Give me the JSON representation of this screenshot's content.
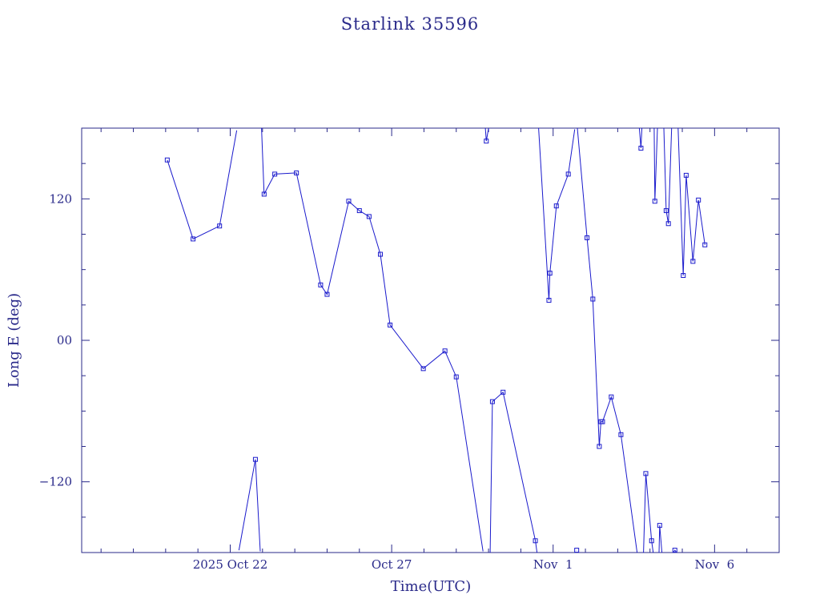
{
  "chart_data": {
    "type": "line",
    "title": "Starlink 35596",
    "xlabel": "Time(UTC)",
    "ylabel": "Long E (deg)",
    "x_unit": "days in Oct-Nov 2025 (day-of-month index, Nov 1 = 32)",
    "xlim": [
      17.4,
      39.0
    ],
    "ylim": [
      -180,
      180
    ],
    "grid": false,
    "colors": {
      "axes": "#2a2a8a",
      "series": "#1a1acc",
      "text": "#2a2a8a"
    },
    "x_ticks": [
      {
        "value": 22,
        "label": "2025 Oct 22"
      },
      {
        "value": 27,
        "label": "Oct 27"
      },
      {
        "value": 32,
        "label": "Nov  1"
      },
      {
        "value": 37,
        "label": "Nov  6"
      }
    ],
    "y_ticks": [
      {
        "value": 120,
        "label": "120"
      },
      {
        "value": 0,
        "label": "00"
      },
      {
        "value": -120,
        "label": "−120"
      }
    ],
    "series": [
      {
        "points": [
          {
            "x": 20.05,
            "y": 153
          },
          {
            "x": 20.85,
            "y": 86
          },
          {
            "x": 21.67,
            "y": 97
          },
          {
            "x": 22.2,
            "y": 178,
            "wrap": true
          },
          {
            "x": 22.27,
            "y": -178
          },
          {
            "x": 22.78,
            "y": -101
          },
          {
            "x": 22.93,
            "y": -179,
            "wrap": true
          },
          {
            "x": 22.97,
            "y": 180
          },
          {
            "x": 23.05,
            "y": 124
          },
          {
            "x": 23.38,
            "y": 141
          },
          {
            "x": 24.05,
            "y": 142
          },
          {
            "x": 24.8,
            "y": 47
          },
          {
            "x": 25.0,
            "y": 39
          },
          {
            "x": 25.67,
            "y": 118
          },
          {
            "x": 26.0,
            "y": 110
          },
          {
            "x": 26.3,
            "y": 105
          },
          {
            "x": 26.65,
            "y": 73
          },
          {
            "x": 26.95,
            "y": 13
          },
          {
            "x": 27.98,
            "y": -24
          },
          {
            "x": 28.65,
            "y": -9
          },
          {
            "x": 29.0,
            "y": -31
          },
          {
            "x": 29.83,
            "y": -179,
            "wrap": true
          },
          {
            "x": 29.9,
            "y": 180
          },
          {
            "x": 29.93,
            "y": 169
          },
          {
            "x": 30.0,
            "y": 180,
            "wrap": true
          },
          {
            "x": 30.05,
            "y": -180
          },
          {
            "x": 30.12,
            "y": -52
          },
          {
            "x": 30.45,
            "y": -44
          },
          {
            "x": 31.45,
            "y": -170
          },
          {
            "x": 31.5,
            "y": -180,
            "wrap": true
          },
          {
            "x": 31.55,
            "y": 180
          },
          {
            "x": 31.87,
            "y": 34
          },
          {
            "x": 31.9,
            "y": 57
          },
          {
            "x": 32.1,
            "y": 114
          },
          {
            "x": 32.47,
            "y": 141
          },
          {
            "x": 32.67,
            "y": 179,
            "wrap": true
          },
          {
            "x": 32.72,
            "y": -178
          },
          {
            "x": 32.73,
            "y": -178,
            "wrap": true
          },
          {
            "x": 32.75,
            "y": 180
          },
          {
            "x": 33.05,
            "y": 87
          },
          {
            "x": 33.23,
            "y": 35
          },
          {
            "x": 33.43,
            "y": -90
          },
          {
            "x": 33.48,
            "y": -69
          },
          {
            "x": 33.53,
            "y": -69
          },
          {
            "x": 33.8,
            "y": -48
          },
          {
            "x": 34.1,
            "y": -80
          },
          {
            "x": 34.6,
            "y": -180,
            "wrap": true
          },
          {
            "x": 34.67,
            "y": 180
          },
          {
            "x": 34.72,
            "y": 163
          },
          {
            "x": 34.75,
            "y": 180,
            "wrap": true
          },
          {
            "x": 34.8,
            "y": -180
          },
          {
            "x": 34.87,
            "y": -113
          },
          {
            "x": 35.05,
            "y": -170
          },
          {
            "x": 35.1,
            "y": -180,
            "wrap": true
          },
          {
            "x": 35.13,
            "y": 180
          },
          {
            "x": 35.15,
            "y": 118
          },
          {
            "x": 35.23,
            "y": 180,
            "wrap": true
          },
          {
            "x": 35.28,
            "y": -180
          },
          {
            "x": 35.3,
            "y": -157
          },
          {
            "x": 35.37,
            "y": -180,
            "wrap": true
          },
          {
            "x": 35.43,
            "y": 180
          },
          {
            "x": 35.5,
            "y": 110
          },
          {
            "x": 35.57,
            "y": 99
          },
          {
            "x": 35.67,
            "y": 180,
            "wrap": true
          },
          {
            "x": 35.72,
            "y": -180
          },
          {
            "x": 35.77,
            "y": -178
          },
          {
            "x": 35.82,
            "y": -180,
            "wrap": true
          },
          {
            "x": 35.87,
            "y": 180
          },
          {
            "x": 36.03,
            "y": 55
          },
          {
            "x": 36.12,
            "y": 140
          },
          {
            "x": 36.33,
            "y": 67
          },
          {
            "x": 36.5,
            "y": 119
          },
          {
            "x": 36.7,
            "y": 81
          }
        ],
        "markers": [
          [
            20.05,
            153
          ],
          [
            20.85,
            86
          ],
          [
            21.67,
            97
          ],
          [
            22.78,
            -101
          ],
          [
            23.05,
            124
          ],
          [
            23.38,
            141
          ],
          [
            24.05,
            142
          ],
          [
            24.8,
            47
          ],
          [
            25.0,
            39
          ],
          [
            25.67,
            118
          ],
          [
            26.0,
            110
          ],
          [
            26.3,
            105
          ],
          [
            26.65,
            73
          ],
          [
            26.95,
            13
          ],
          [
            27.98,
            -24
          ],
          [
            28.65,
            -9
          ],
          [
            29.0,
            -31
          ],
          [
            29.93,
            169
          ],
          [
            30.12,
            -52
          ],
          [
            30.45,
            -44
          ],
          [
            31.45,
            -170
          ],
          [
            31.87,
            34
          ],
          [
            31.9,
            57
          ],
          [
            32.1,
            114
          ],
          [
            32.47,
            141
          ],
          [
            32.73,
            -178
          ],
          [
            33.05,
            87
          ],
          [
            33.23,
            35
          ],
          [
            33.43,
            -90
          ],
          [
            33.48,
            -69
          ],
          [
            33.53,
            -69
          ],
          [
            33.8,
            -48
          ],
          [
            34.1,
            -80
          ],
          [
            34.72,
            163
          ],
          [
            34.87,
            -113
          ],
          [
            35.05,
            -170
          ],
          [
            35.15,
            118
          ],
          [
            35.3,
            -157
          ],
          [
            35.5,
            110
          ],
          [
            35.57,
            99
          ],
          [
            35.77,
            -178
          ],
          [
            36.03,
            55
          ],
          [
            36.12,
            140
          ],
          [
            36.33,
            67
          ],
          [
            36.5,
            119
          ],
          [
            36.7,
            81
          ]
        ]
      }
    ]
  }
}
